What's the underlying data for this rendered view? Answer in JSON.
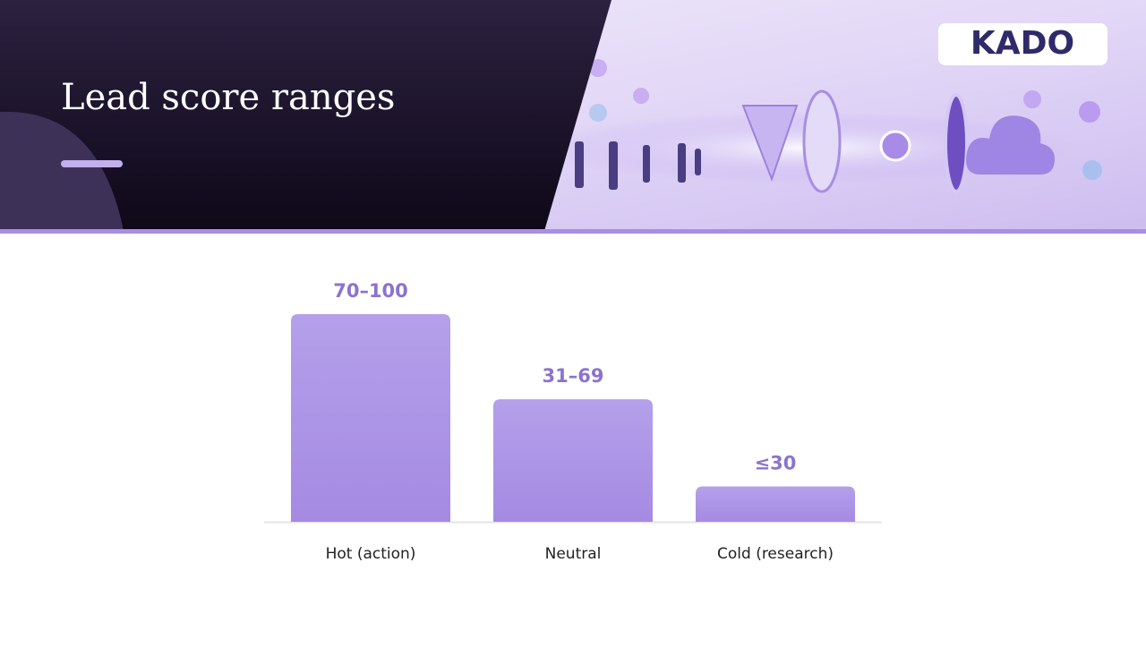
{
  "header": {
    "title": "Lead score ranges",
    "logo": "KADO"
  },
  "chart_data": {
    "type": "bar",
    "categories": [
      "Hot (action)",
      "Neutral",
      "Cold (research)"
    ],
    "values": [
      100,
      59,
      17
    ],
    "value_labels": [
      "70–100",
      "31–69",
      "≤30"
    ],
    "color": "#a98ee3",
    "ylim": [
      0,
      100
    ]
  }
}
